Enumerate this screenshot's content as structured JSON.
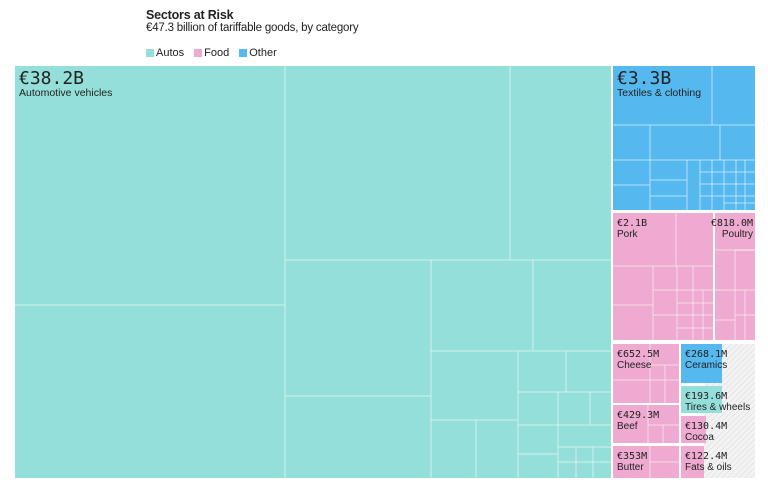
{
  "chart_data": {
    "type": "treemap",
    "title": "Sectors at Risk",
    "subtitle": "€47.3 billion of tariffable goods, by category",
    "legend": [
      {
        "name": "Autos",
        "color": "#94dfd9"
      },
      {
        "name": "Food",
        "color": "#eeaad0"
      },
      {
        "name": "Other",
        "color": "#55b8ef"
      }
    ],
    "legend_placement": "top-left",
    "items": [
      {
        "label": "Automotive vehicles",
        "value_label": "€38.2B",
        "value": 38200,
        "category": "Autos"
      },
      {
        "label": "Textiles & clothing",
        "value_label": "€3.3B",
        "value": 3300,
        "category": "Other"
      },
      {
        "label": "Pork",
        "value_label": "€2.1B",
        "value": 2100,
        "category": "Food"
      },
      {
        "label": "Poultry",
        "value_label": "€818.0M",
        "value": 818.0,
        "category": "Food"
      },
      {
        "label": "Cheese",
        "value_label": "€652.5M",
        "value": 652.5,
        "category": "Food"
      },
      {
        "label": "Beef",
        "value_label": "€429.3M",
        "value": 429.3,
        "category": "Food"
      },
      {
        "label": "Butter",
        "value_label": "€353M",
        "value": 353,
        "category": "Food"
      },
      {
        "label": "Ceramics",
        "value_label": "€268.1M",
        "value": 268.1,
        "category": "Other"
      },
      {
        "label": "Tires & wheels",
        "value_label": "€193.6M",
        "value": 193.6,
        "category": "Autos"
      },
      {
        "label": "Cocoa",
        "value_label": "€130.4M",
        "value": 130.4,
        "category": "Food"
      },
      {
        "label": "Fats & oils",
        "value_label": "€122.4M",
        "value": 122.4,
        "category": "Food"
      }
    ]
  }
}
